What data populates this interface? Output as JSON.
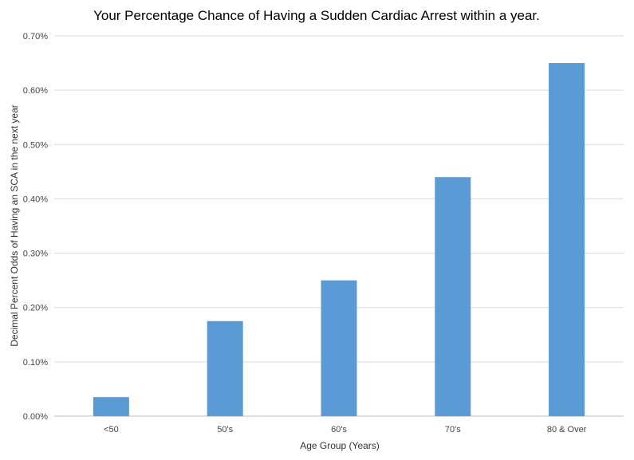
{
  "chart_data": {
    "type": "bar",
    "title": "Your Percentage  Chance of Having a Sudden Cardiac Arrest within a year.",
    "xlabel": "Age Group (Years)",
    "ylabel": "Decimal Percent Odds of Having an SCA in the next year",
    "categories": [
      "<50",
      "50's",
      "60's",
      "70's",
      "80 & Over"
    ],
    "values": [
      0.035,
      0.175,
      0.25,
      0.44,
      0.65
    ],
    "ylim": [
      0,
      0.7
    ],
    "yticks": [
      "0.00%",
      "0.10%",
      "0.20%",
      "0.30%",
      "0.40%",
      "0.50%",
      "0.60%",
      "0.70%"
    ],
    "grid": true,
    "legend": "none",
    "colors": {
      "bar": "#5b9bd5",
      "grid": "#d9d9d9",
      "axis": "#bfbfbf"
    }
  }
}
